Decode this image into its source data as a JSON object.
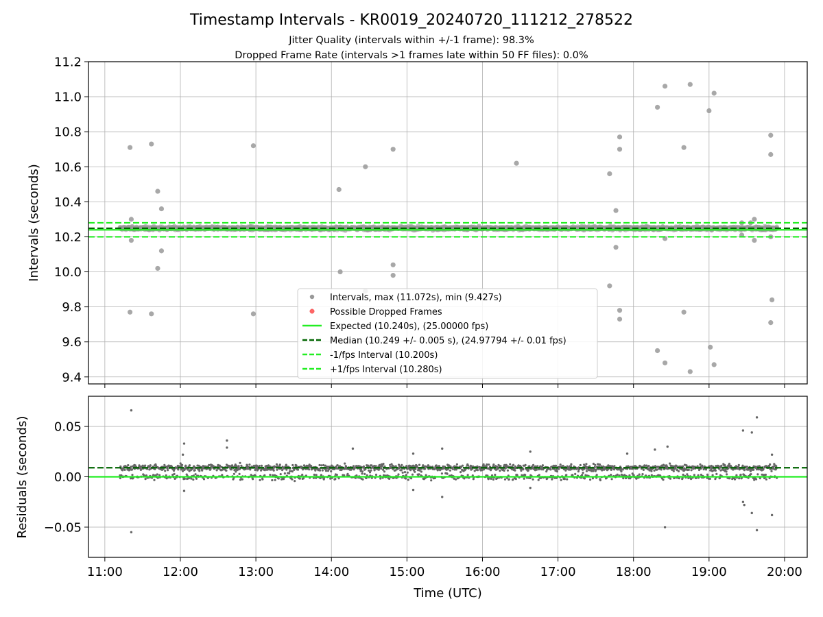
{
  "chart_data": [
    {
      "type": "scatter",
      "title": "Timestamp Intervals - KR0019_20240720_111212_278522",
      "subtitle_lines": [
        "Jitter Quality (intervals within +/-1 frame): 98.3%",
        "Dropped Frame Rate (intervals >1 frames late within 50 FF files): 0.0%"
      ],
      "xlabel": "",
      "ylabel": "Intervals (seconds)",
      "xlim": [
        "10:47",
        "20:18"
      ],
      "ylim": [
        9.36,
        11.2
      ],
      "y_ticks": [
        "9.4",
        "9.6",
        "9.8",
        "10.0",
        "10.2",
        "10.4",
        "10.6",
        "10.8",
        "11.0",
        "11.2"
      ],
      "y_tick_values": [
        9.4,
        9.6,
        9.8,
        10.0,
        10.2,
        10.4,
        10.6,
        10.8,
        11.0,
        11.2
      ],
      "grid": true,
      "legend_position": "lower center",
      "reference_lines": [
        {
          "label": "Expected (10.240s), (25.00000 fps)",
          "y": 10.24,
          "color": "#22ee22",
          "style": "solid"
        },
        {
          "label": "Median (10.249 +/- 0.005 s), (24.97794 +/- 0.01 fps)",
          "y": 10.249,
          "color": "#006400",
          "style": "dashed"
        },
        {
          "label": "-1/fps Interval (10.200s)",
          "y": 10.2,
          "color": "#22ee22",
          "style": "dashed"
        },
        {
          "label": "+1/fps Interval (10.280s)",
          "y": 10.28,
          "color": "#22ee22",
          "style": "dashed"
        }
      ],
      "series": [
        {
          "name": "Intervals, max (11.072s), min (9.427s)",
          "color": "#999999",
          "marker": "circle"
        },
        {
          "name": "Possible Dropped Frames",
          "color": "#ff6666",
          "marker": "circle",
          "values": []
        }
      ],
      "outliers": [
        {
          "x": "11:20",
          "y": 10.71
        },
        {
          "x": "11:21",
          "y": 10.3
        },
        {
          "x": "11:21",
          "y": 10.18
        },
        {
          "x": "11:20",
          "y": 9.77
        },
        {
          "x": "11:37",
          "y": 10.73
        },
        {
          "x": "11:37",
          "y": 9.76
        },
        {
          "x": "11:42",
          "y": 10.46
        },
        {
          "x": "11:42",
          "y": 10.02
        },
        {
          "x": "11:45",
          "y": 10.36
        },
        {
          "x": "11:45",
          "y": 10.12
        },
        {
          "x": "12:58",
          "y": 10.72
        },
        {
          "x": "12:58",
          "y": 9.76
        },
        {
          "x": "14:06",
          "y": 10.47
        },
        {
          "x": "14:07",
          "y": 10.0
        },
        {
          "x": "14:27",
          "y": 10.6
        },
        {
          "x": "14:27",
          "y": 9.89
        },
        {
          "x": "14:49",
          "y": 10.7
        },
        {
          "x": "14:49",
          "y": 10.04
        },
        {
          "x": "14:49",
          "y": 9.98
        },
        {
          "x": "16:27",
          "y": 10.62
        },
        {
          "x": "17:41",
          "y": 10.56
        },
        {
          "x": "17:41",
          "y": 9.92
        },
        {
          "x": "17:46",
          "y": 10.35
        },
        {
          "x": "17:46",
          "y": 10.14
        },
        {
          "x": "17:49",
          "y": 10.77
        },
        {
          "x": "17:49",
          "y": 10.7
        },
        {
          "x": "17:49",
          "y": 9.78
        },
        {
          "x": "17:49",
          "y": 9.73
        },
        {
          "x": "18:19",
          "y": 10.94
        },
        {
          "x": "18:19",
          "y": 9.55
        },
        {
          "x": "18:25",
          "y": 11.06
        },
        {
          "x": "18:25",
          "y": 10.19
        },
        {
          "x": "18:25",
          "y": 9.48
        },
        {
          "x": "18:40",
          "y": 10.71
        },
        {
          "x": "18:40",
          "y": 9.77
        },
        {
          "x": "18:45",
          "y": 11.07
        },
        {
          "x": "18:45",
          "y": 9.43
        },
        {
          "x": "19:00",
          "y": 10.92
        },
        {
          "x": "19:01",
          "y": 9.57
        },
        {
          "x": "19:04",
          "y": 11.02
        },
        {
          "x": "19:04",
          "y": 9.47
        },
        {
          "x": "19:26",
          "y": 10.28
        },
        {
          "x": "19:26",
          "y": 10.21
        },
        {
          "x": "19:33",
          "y": 10.28
        },
        {
          "x": "19:36",
          "y": 10.3
        },
        {
          "x": "19:36",
          "y": 10.18
        },
        {
          "x": "19:49",
          "y": 10.78
        },
        {
          "x": "19:49",
          "y": 10.67
        },
        {
          "x": "19:49",
          "y": 10.2
        },
        {
          "x": "19:50",
          "y": 9.84
        },
        {
          "x": "19:49",
          "y": 9.71
        }
      ]
    },
    {
      "type": "scatter",
      "xlabel": "Time (UTC)",
      "ylabel": "Residuals (seconds)",
      "xlim": [
        "10:47",
        "20:18"
      ],
      "ylim": [
        -0.08,
        0.08
      ],
      "x_ticks": [
        "11:00",
        "12:00",
        "13:00",
        "14:00",
        "15:00",
        "16:00",
        "17:00",
        "18:00",
        "19:00",
        "20:00"
      ],
      "y_ticks": [
        "−0.05",
        "0.00",
        "0.05"
      ],
      "y_tick_values": [
        -0.05,
        0.0,
        0.05
      ],
      "grid": true,
      "reference_lines": [
        {
          "y": 0.0,
          "color": "#22ee22",
          "style": "solid"
        },
        {
          "y": 0.009,
          "color": "#006400",
          "style": "dashed"
        }
      ],
      "series": [
        {
          "color": "#666666",
          "marker": "point"
        }
      ],
      "outliers": [
        {
          "x": "11:21",
          "y": 0.066
        },
        {
          "x": "11:21",
          "y": -0.055
        },
        {
          "x": "12:02",
          "y": 0.022
        },
        {
          "x": "12:03",
          "y": 0.033
        },
        {
          "x": "12:03",
          "y": -0.014
        },
        {
          "x": "12:37",
          "y": 0.036
        },
        {
          "x": "12:37",
          "y": 0.029
        },
        {
          "x": "14:17",
          "y": 0.028
        },
        {
          "x": "15:05",
          "y": 0.023
        },
        {
          "x": "15:05",
          "y": -0.013
        },
        {
          "x": "15:28",
          "y": 0.028
        },
        {
          "x": "15:28",
          "y": -0.02
        },
        {
          "x": "16:38",
          "y": 0.025
        },
        {
          "x": "16:38",
          "y": -0.011
        },
        {
          "x": "17:55",
          "y": 0.023
        },
        {
          "x": "18:17",
          "y": 0.027
        },
        {
          "x": "18:27",
          "y": 0.03
        },
        {
          "x": "18:25",
          "y": -0.05
        },
        {
          "x": "19:27",
          "y": 0.046
        },
        {
          "x": "19:27",
          "y": -0.025
        },
        {
          "x": "19:28",
          "y": -0.028
        },
        {
          "x": "19:34",
          "y": 0.044
        },
        {
          "x": "19:34",
          "y": -0.036
        },
        {
          "x": "19:38",
          "y": 0.059
        },
        {
          "x": "19:38",
          "y": -0.053
        },
        {
          "x": "19:50",
          "y": 0.022
        },
        {
          "x": "19:50",
          "y": -0.038
        }
      ]
    }
  ]
}
